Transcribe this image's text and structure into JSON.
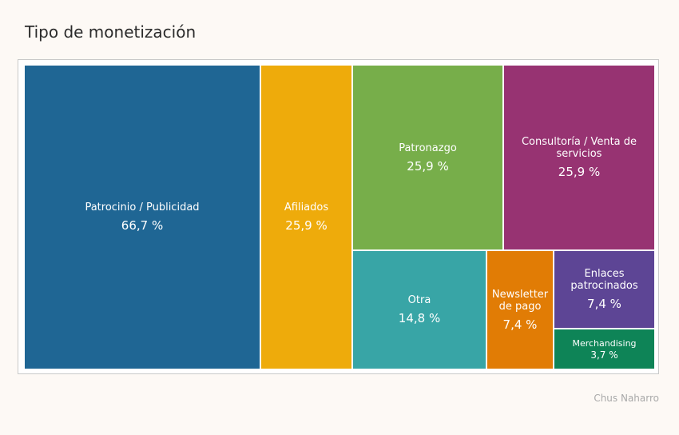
{
  "title": "Tipo de monetización",
  "credit": "Chus Naharro",
  "chart_data": {
    "type": "treemap",
    "title": "Tipo de monetización",
    "unit": "%",
    "items": [
      {
        "name": "Patrocinio / Publicidad",
        "value": 66.7,
        "label": "66,7 %",
        "color": "#1f6694"
      },
      {
        "name": "Afiliados",
        "value": 25.9,
        "label": "25,9 %",
        "color": "#eeab0b"
      },
      {
        "name": "Patronazgo",
        "value": 25.9,
        "label": "25,9 %",
        "color": "#77ae4a"
      },
      {
        "name": "Consultoría / Venta de servicios",
        "value": 25.9,
        "label": "25,9 %",
        "color": "#973372"
      },
      {
        "name": "Otra",
        "value": 14.8,
        "label": "14,8 %",
        "color": "#38a5a6"
      },
      {
        "name": "Newsletter de pago",
        "value": 7.4,
        "label": "7,4 %",
        "color": "#e17c05"
      },
      {
        "name": "Enlaces patrocinados",
        "value": 7.4,
        "label": "7,4 %",
        "color": "#5d4595"
      },
      {
        "name": "Merchandising",
        "value": 3.7,
        "label": "3,7 %",
        "color": "#0e8457"
      }
    ]
  }
}
